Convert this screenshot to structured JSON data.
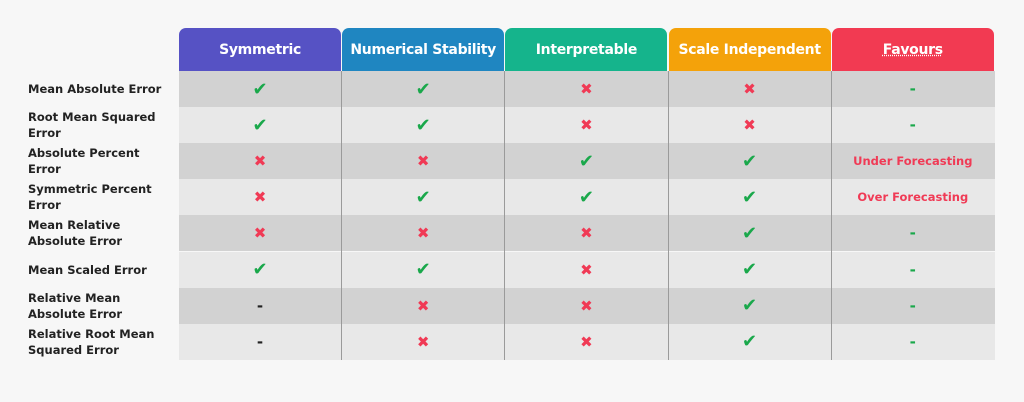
{
  "table": {
    "columns": [
      {
        "label": "Symmetric",
        "color": "#5652c4"
      },
      {
        "label": "Numerical Stability",
        "color": "#1f86c1"
      },
      {
        "label": "Interpretable",
        "color": "#15b48c"
      },
      {
        "label": "Scale Independent",
        "color": "#f4a20a"
      },
      {
        "label": "Favours",
        "color": "#f23a52"
      }
    ],
    "rows": [
      {
        "label": "Mean Absolute Error",
        "cells": [
          "✔",
          "✔",
          "✖",
          "✖",
          "-"
        ]
      },
      {
        "label": "Root Mean Squared Error",
        "cells": [
          "✔",
          "✔",
          "✖",
          "✖",
          "-"
        ]
      },
      {
        "label": "Absolute Percent Error",
        "cells": [
          "✖",
          "✖",
          "✔",
          "✔",
          "Under Forecasting"
        ]
      },
      {
        "label": "Symmetric Percent Error",
        "cells": [
          "✖",
          "✔",
          "✔",
          "✔",
          "Over Forecasting"
        ]
      },
      {
        "label": "Mean Relative Absolute Error",
        "cells": [
          "✖",
          "✖",
          "✖",
          "✔",
          "-"
        ]
      },
      {
        "label": "Mean Scaled Error",
        "cells": [
          "✔",
          "✔",
          "✖",
          "✔",
          "-"
        ]
      },
      {
        "label": "Relative Mean Absolute Error",
        "cells": [
          "-",
          "✖",
          "✖",
          "✔",
          "-"
        ]
      },
      {
        "label": "Relative Root Mean Squared Error",
        "cells": [
          "-",
          "✖",
          "✖",
          "✔",
          "-"
        ]
      }
    ]
  }
}
